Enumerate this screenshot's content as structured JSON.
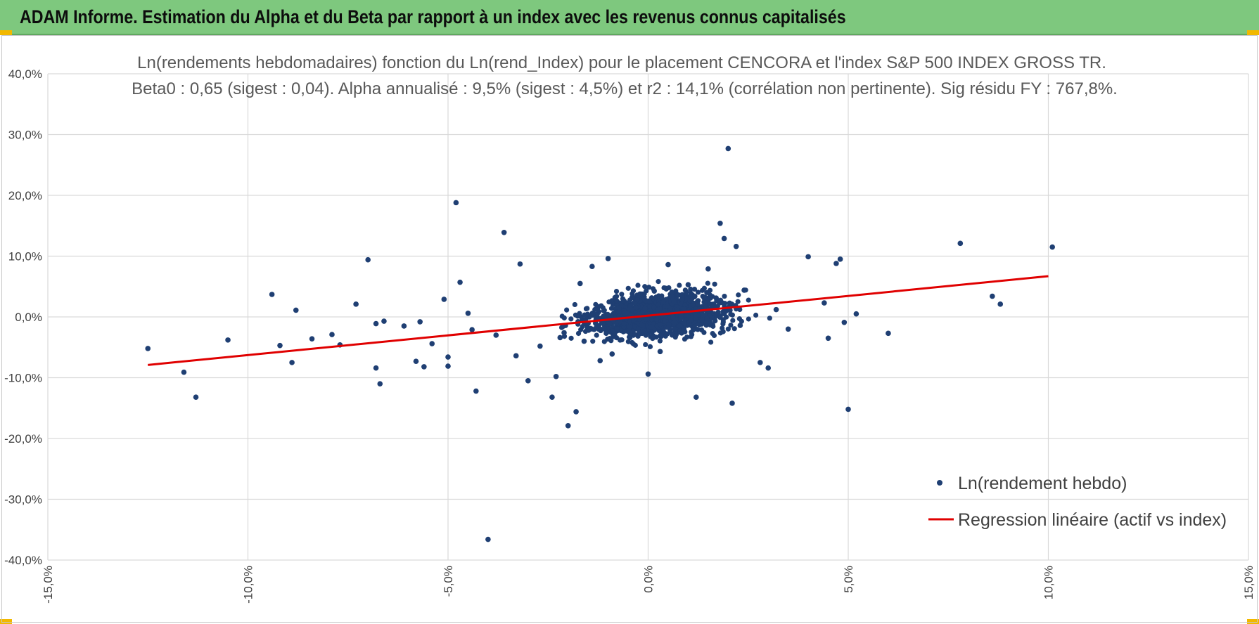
{
  "header": {
    "title": "ADAM Informe. Estimation du Alpha et du Beta par rapport à un index avec les revenus connus capitalisés"
  },
  "colors": {
    "header_bg": "#7ec87e",
    "corner_accent": "#f2b800",
    "points": "#1f3f73",
    "regression": "#e00000",
    "grid": "#d9d9d9"
  },
  "chart_data": {
    "type": "scatter",
    "title_line1": "Ln(rendements hebdomadaires) fonction du Ln(rend_Index) pour le placement CENCORA et l'index S&P 500 INDEX GROSS TR.",
    "title_line2": "Beta0 : 0,65  (sigest : 0,04).  Alpha annualisé : 9,5% (sigest : 4,5%) et r2 : 14,1% (corrélation non pertinente). Sig résidu FY : 767,8%.",
    "xlim": [
      -15,
      15
    ],
    "ylim": [
      -40,
      40
    ],
    "x_ticks": [
      -15,
      -10,
      -5,
      0,
      5,
      10,
      15
    ],
    "y_ticks": [
      -40,
      -30,
      -20,
      -10,
      0,
      10,
      20,
      30,
      40
    ],
    "x_tick_labels": [
      "-15,0%",
      "-10,0%",
      "-5,0%",
      "0,0%",
      "5,0%",
      "10,0%",
      "15,0%"
    ],
    "y_tick_labels": [
      "-40,0%",
      "-30,0%",
      "-20,0%",
      "-10,0%",
      "0,0%",
      "10,0%",
      "20,0%",
      "30,0%",
      "40,0%"
    ],
    "grid": true,
    "legend_position": "bottom-right",
    "series": [
      {
        "name": "Ln(rendement hebdo)",
        "kind": "scatter",
        "x": [
          -12.5,
          -11.6,
          -11.3,
          -10.5,
          -9.4,
          -9.2,
          -8.9,
          -8.8,
          -8.4,
          -7.9,
          -7.7,
          -7.3,
          -7.0,
          -6.8,
          -6.8,
          -6.7,
          -6.6,
          -6.1,
          -5.8,
          -5.7,
          -5.6,
          -5.4,
          -5.1,
          -5.0,
          -5.0,
          -4.8,
          -4.7,
          -4.5,
          -4.4,
          -4.3,
          -4.0,
          -3.8,
          -3.6,
          -3.3,
          -3.2,
          -3.0,
          -2.7,
          -2.4,
          -2.3,
          -2.2,
          -2.1,
          -2.0,
          -1.8,
          -1.7,
          -1.6,
          -1.4,
          -1.2,
          -1.0,
          -0.9,
          -0.7,
          -0.6,
          -0.4,
          -0.2,
          0.0,
          0.3,
          0.5,
          1.0,
          1.2,
          1.5,
          1.7,
          1.8,
          1.9,
          2.0,
          2.1,
          2.2,
          2.3,
          2.4,
          2.8,
          3.0,
          3.2,
          3.5,
          4.0,
          4.4,
          4.5,
          4.7,
          4.8,
          4.9,
          5.0,
          5.2,
          6.0,
          7.8,
          8.6,
          8.8,
          10.1
        ],
        "y": [
          -5.2,
          -9.1,
          -13.2,
          -3.8,
          3.7,
          -4.7,
          -7.5,
          1.1,
          -3.6,
          -2.9,
          -4.6,
          2.1,
          9.4,
          -1.1,
          -8.4,
          -11.0,
          -0.7,
          -1.5,
          -7.3,
          -0.8,
          -8.2,
          -4.4,
          2.9,
          -8.1,
          -6.6,
          18.8,
          5.7,
          0.6,
          -2.1,
          -12.2,
          -36.6,
          -3.0,
          13.9,
          -6.4,
          8.7,
          -10.5,
          -4.8,
          -13.2,
          -9.8,
          -3.4,
          -2.6,
          -17.9,
          -15.6,
          5.5,
          -4.0,
          8.3,
          -7.2,
          9.6,
          -6.1,
          -3.8,
          1.0,
          3.2,
          -1.5,
          -9.4,
          -5.7,
          8.6,
          5.3,
          -13.2,
          7.9,
          3.1,
          15.4,
          12.9,
          27.7,
          -14.2,
          11.6,
          -1.4,
          4.4,
          -7.5,
          -8.4,
          1.2,
          -2.0,
          9.9,
          2.3,
          -3.5,
          8.8,
          9.5,
          -0.9,
          -15.2,
          0.5,
          -2.7,
          12.1,
          3.4,
          2.1,
          11.5
        ],
        "color": "#1f3f73"
      },
      {
        "name": "Regression linéaire (actif vs index)",
        "kind": "line",
        "x": [
          -12.5,
          10.0
        ],
        "y": [
          -7.9,
          6.7
        ],
        "color": "#e00000"
      }
    ]
  }
}
